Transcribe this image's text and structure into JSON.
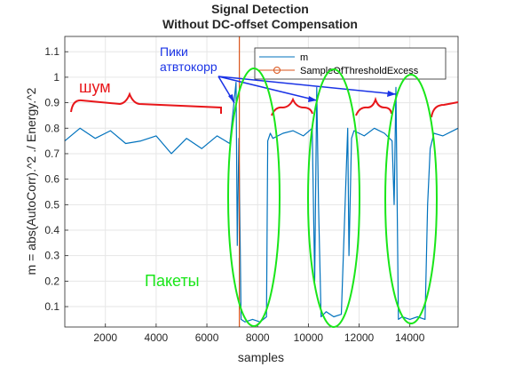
{
  "chart_data": {
    "type": "line",
    "title_lines": [
      "Signal Detection",
      "Without DC-offset Compensation"
    ],
    "xlabel": "samples",
    "ylabel": "m = abs(AutoCorr).^2 ./ Energy.^2",
    "xlim": [
      400,
      15900
    ],
    "ylim": [
      0.02,
      1.16
    ],
    "xticks": [
      2000,
      4000,
      6000,
      8000,
      10000,
      12000,
      14000
    ],
    "xtick_labels": [
      "2000",
      "4000",
      "6000",
      "8000",
      "10000",
      "12000",
      "14000"
    ],
    "yticks": [
      0.1,
      0.2,
      0.3,
      0.4,
      0.5,
      0.6,
      0.7,
      0.8,
      0.9,
      1.0,
      1.1
    ],
    "ytick_labels": [
      "0.1",
      "0.2",
      "0.3",
      "0.4",
      "0.5",
      "0.6",
      "0.7",
      "0.8",
      "0.9",
      "1",
      "1.1"
    ],
    "grid": true,
    "legend_position": "top-right",
    "series": [
      {
        "name": "m",
        "color": "#0072bd",
        "x": [
          400,
          1000,
          1600,
          2200,
          2800,
          3400,
          4000,
          4600,
          5200,
          5800,
          6400,
          6900,
          7150,
          7200,
          7260,
          7350,
          7500,
          7800,
          8100,
          8350,
          8400,
          8500,
          8600,
          9000,
          9400,
          9800,
          10150,
          10250,
          10330,
          10400,
          10500,
          10700,
          11000,
          11300,
          11550,
          11600,
          11700,
          11800,
          12200,
          12600,
          13000,
          13300,
          13380,
          13450,
          13550,
          13700,
          14000,
          14300,
          14600,
          14700,
          14800,
          14950,
          15300,
          15900
        ],
        "y": [
          0.75,
          0.8,
          0.76,
          0.79,
          0.74,
          0.75,
          0.77,
          0.7,
          0.76,
          0.72,
          0.77,
          0.74,
          0.98,
          0.34,
          0.76,
          0.05,
          0.04,
          0.05,
          0.04,
          0.06,
          0.75,
          0.78,
          0.76,
          0.78,
          0.79,
          0.77,
          0.8,
          0.2,
          0.96,
          0.5,
          0.06,
          0.08,
          0.06,
          0.07,
          0.8,
          0.3,
          0.76,
          0.79,
          0.77,
          0.8,
          0.78,
          0.75,
          0.5,
          0.96,
          0.05,
          0.06,
          0.05,
          0.06,
          0.05,
          0.5,
          0.72,
          0.78,
          0.77,
          0.8
        ]
      },
      {
        "name": "SampleOfThresholdExcess",
        "color": "#d95319",
        "x": [
          7280,
          7280
        ],
        "y": [
          0.02,
          1.16
        ]
      }
    ],
    "annotations": {
      "noise_label": "шум",
      "peaks_label_line1": "Пики",
      "peaks_label_line2": "атвтокорр",
      "packets_label": "Пакеты"
    },
    "annotation_colors": {
      "red": "#e8161a",
      "blue": "#1a33e6",
      "green": "#19e619"
    }
  }
}
